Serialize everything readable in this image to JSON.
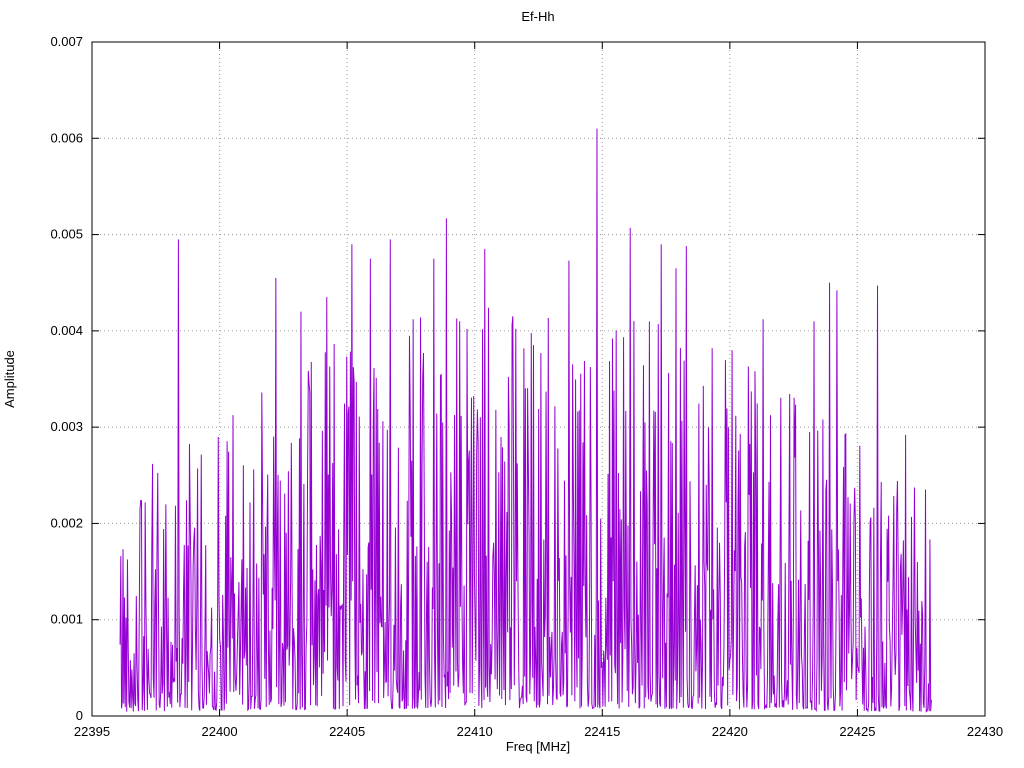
{
  "chart": {
    "title": "Ef-Hh",
    "xlabel": "Freq [MHz]",
    "ylabel": "Amplitude"
  },
  "chart_data": {
    "type": "line",
    "title": "Ef-Hh",
    "xlabel": "Freq [MHz]",
    "ylabel": "Amplitude",
    "series_name": "Ef-Hh",
    "xlim": [
      22395,
      22430
    ],
    "ylim": [
      0,
      0.007
    ],
    "xticks": [
      22395,
      22400,
      22405,
      22410,
      22415,
      22420,
      22425,
      22430
    ],
    "yticks": [
      0,
      0.001,
      0.002,
      0.003,
      0.004,
      0.005,
      0.006,
      0.007
    ],
    "xtick_labels": [
      "22395",
      "22400",
      "22405",
      "22410",
      "22415",
      "22420",
      "22425",
      "22430"
    ],
    "ytick_labels": [
      "0",
      "0.001",
      "0.002",
      "0.003",
      "0.004",
      "0.005",
      "0.006",
      "0.007"
    ],
    "grid": true,
    "grid_style": "dotted",
    "legend": "none",
    "line_color": "#9400d3",
    "data_x_range": [
      22396.1,
      22427.9
    ],
    "description": "Dense noise-like amplitude spectrum, typical values 0.0005-0.004, synthesized deterministically from seed plus listed peak points",
    "noise": {
      "seed": 42,
      "points": 1100,
      "floor": 8e-05,
      "typical_max": 0.0043,
      "shape_exp": 2.4,
      "edge_envelope": 0.55
    },
    "peaks": [
      [
        22398.4,
        0.00495
      ],
      [
        22402.2,
        0.00455
      ],
      [
        22403.2,
        0.0042
      ],
      [
        22404.2,
        0.00435
      ],
      [
        22405.2,
        0.0049
      ],
      [
        22405.9,
        0.00475
      ],
      [
        22406.7,
        0.00495
      ],
      [
        22407.6,
        0.00412
      ],
      [
        22408.4,
        0.00475
      ],
      [
        22408.9,
        0.00517
      ],
      [
        22409.4,
        0.0041
      ],
      [
        22410.4,
        0.00485
      ],
      [
        22411.6,
        0.00402
      ],
      [
        22413.7,
        0.00473
      ],
      [
        22414.8,
        0.0061
      ],
      [
        22415.4,
        0.00392
      ],
      [
        22416.1,
        0.00507
      ],
      [
        22417.3,
        0.0049
      ],
      [
        22417.9,
        0.00465
      ],
      [
        22418.3,
        0.00488
      ],
      [
        22419.3,
        0.00382
      ],
      [
        22420.1,
        0.0038
      ],
      [
        22421.3,
        0.00412
      ],
      [
        22423.3,
        0.0041
      ],
      [
        22423.9,
        0.0045
      ],
      [
        22424.2,
        0.00442
      ],
      [
        22425.8,
        0.00447
      ],
      [
        22426.9,
        0.00292
      ]
    ]
  }
}
